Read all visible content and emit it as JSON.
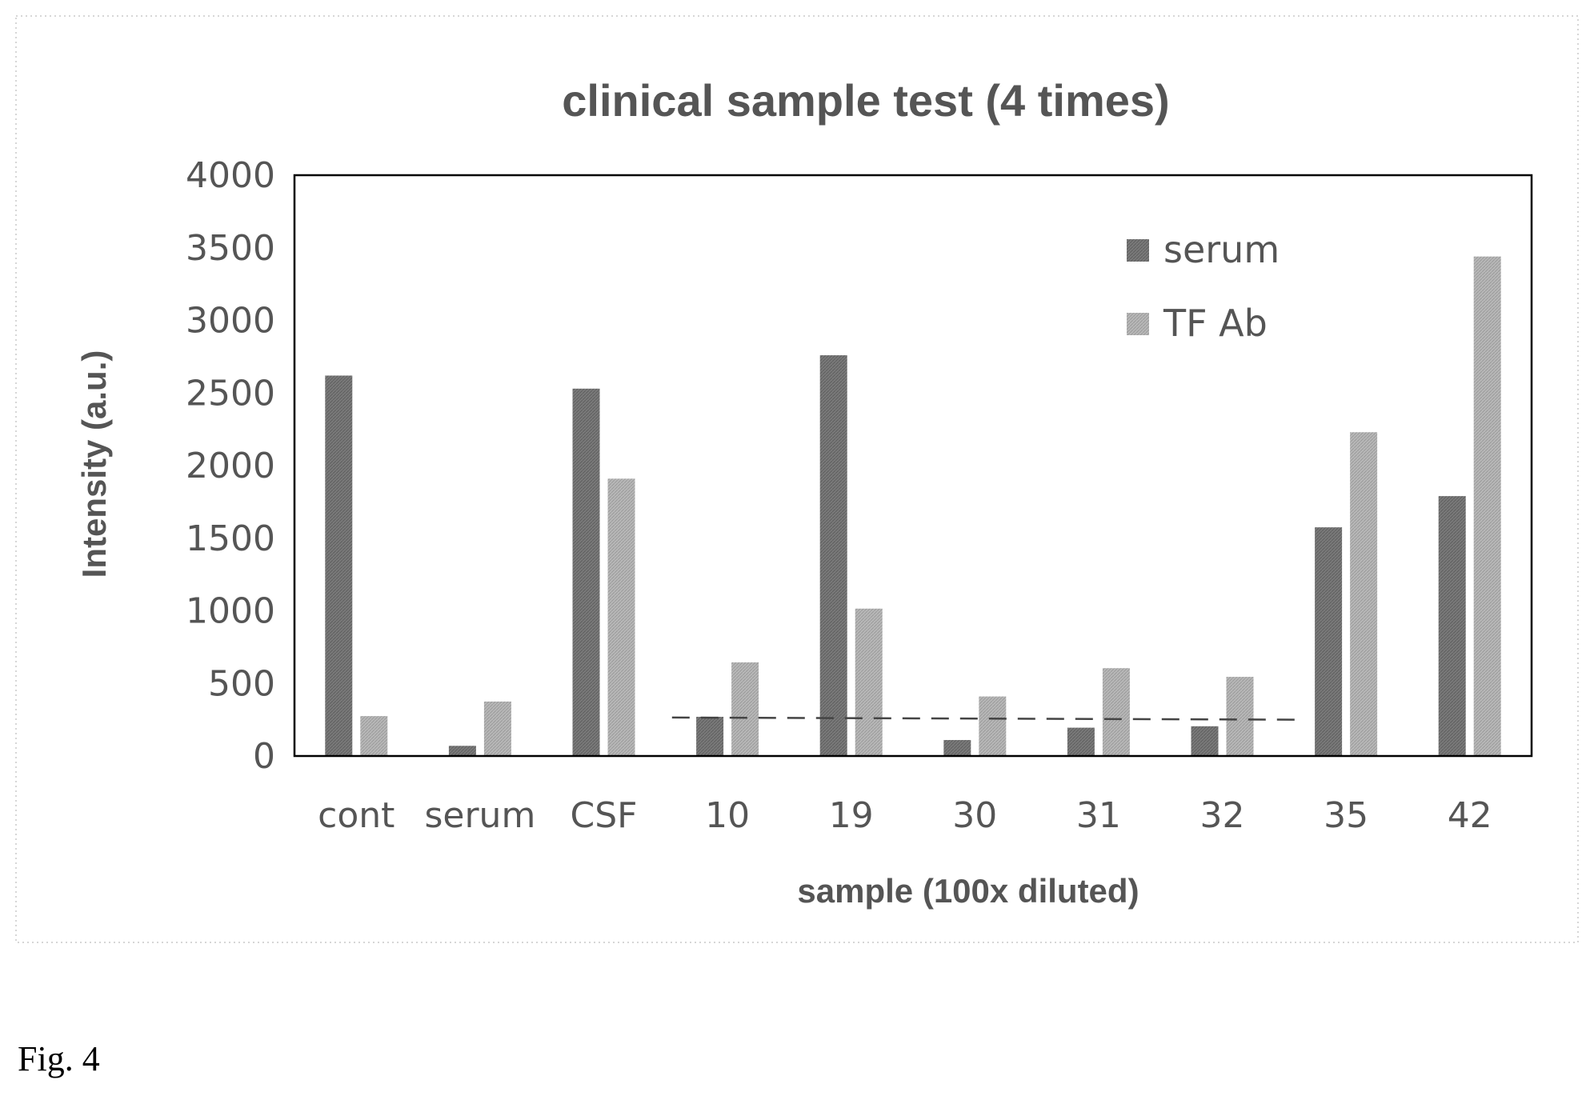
{
  "chart_data": {
    "type": "bar",
    "title": "clinical sample test (4 times)",
    "xlabel": "sample (100x diluted)",
    "ylabel": "Intensity (a.u.)",
    "ylim": [
      0,
      4000
    ],
    "yticks": [
      0,
      500,
      1000,
      1500,
      2000,
      2500,
      3000,
      3500,
      4000
    ],
    "categories": [
      "cont",
      "serum",
      "CSF",
      "10",
      "19",
      "30",
      "31",
      "32",
      "35",
      "42"
    ],
    "series": [
      {
        "name": "serum",
        "color": "#7a7a7a",
        "values": [
          2620,
          70,
          2530,
          270,
          2760,
          110,
          195,
          205,
          1575,
          1790
        ]
      },
      {
        "name": "TF Ab",
        "color": "#b4b4b4",
        "values": [
          275,
          375,
          1910,
          645,
          1015,
          410,
          605,
          545,
          2230,
          3440
        ]
      }
    ],
    "threshold_line": {
      "style": "dashed",
      "from_category": "10",
      "to_category": "32",
      "values": [
        265,
        250
      ]
    },
    "legend_position": "top-right",
    "grid": false
  },
  "caption": "Fig. 4"
}
